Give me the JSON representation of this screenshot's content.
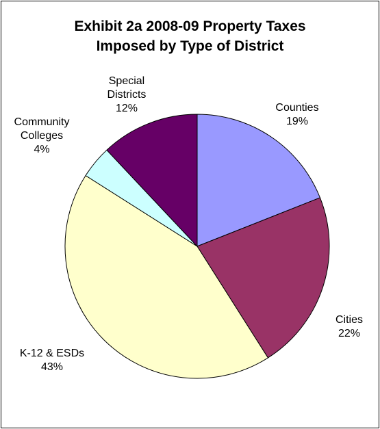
{
  "chart_data": {
    "type": "pie",
    "title": {
      "line1": "Exhibit 2a 2008-09 Property Taxes",
      "line2": "Imposed by Type of District"
    },
    "slices": [
      {
        "label": [
          "Counties"
        ],
        "percent_label": "19%",
        "value": 19,
        "color": "#9999FF"
      },
      {
        "label": [
          "Cities"
        ],
        "percent_label": "22%",
        "value": 22,
        "color": "#993366"
      },
      {
        "label": [
          "K-12 & ESDs"
        ],
        "percent_label": "43%",
        "value": 43,
        "color": "#FFFFCC"
      },
      {
        "label": [
          "Community",
          "Colleges"
        ],
        "percent_label": "4%",
        "value": 4,
        "color": "#CCFFFF"
      },
      {
        "label": [
          "Special",
          "Districts"
        ],
        "percent_label": "12%",
        "value": 12,
        "color": "#660066"
      }
    ],
    "legend": "none"
  }
}
